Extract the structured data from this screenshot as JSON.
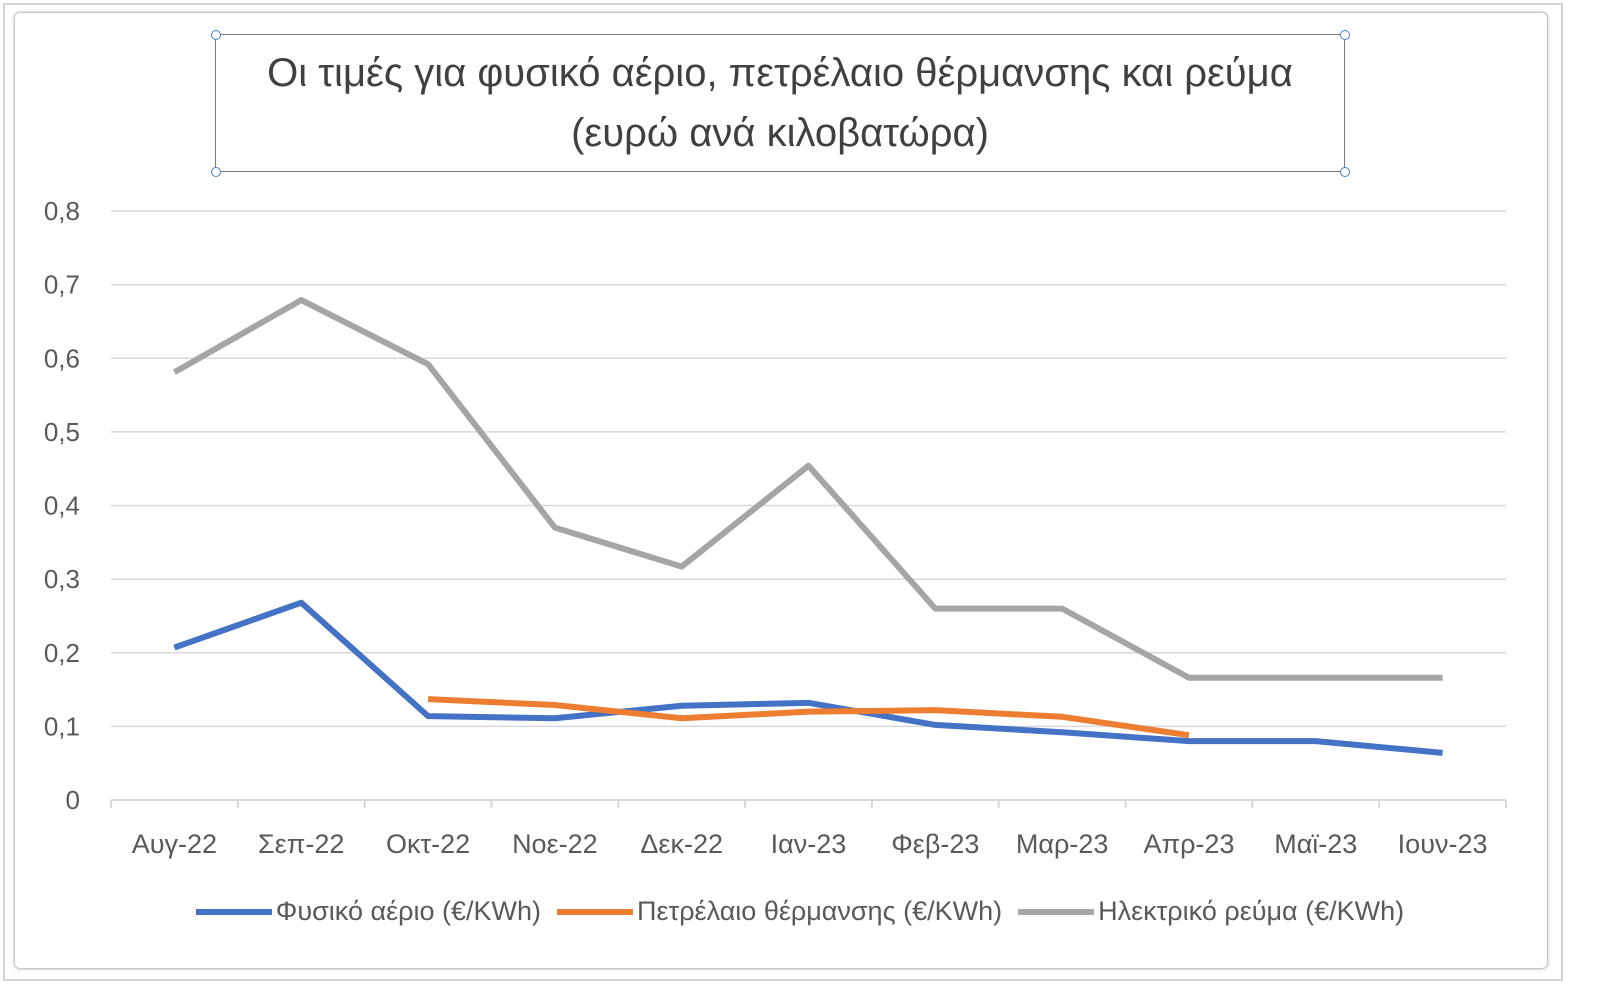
{
  "chart_data": {
    "type": "line",
    "title": "Οι τιμές για φυσικό αέριο, πετρέλαιο θέρμανσης και ρεύμα (ευρώ ανά κιλοβατώρα)",
    "categories": [
      "Αυγ-22",
      "Σεπ-22",
      "Οκτ-22",
      "Νοε-22",
      "Δεκ-22",
      "Ιαν-23",
      "Φεβ-23",
      "Μαρ-23",
      "Απρ-23",
      "Μαϊ-23",
      "Ιουν-23"
    ],
    "ylim": [
      0,
      0.8
    ],
    "yticks": [
      "0",
      "0,1",
      "0,2",
      "0,3",
      "0,4",
      "0,5",
      "0,6",
      "0,7",
      "0,8"
    ],
    "grid": true,
    "legend": "bottom",
    "series": [
      {
        "name": "Φυσικό αέριο (€/KWh)",
        "color": "#4472c4",
        "values": [
          0.207,
          0.268,
          0.114,
          0.111,
          0.128,
          0.132,
          0.102,
          0.092,
          0.08,
          0.08,
          0.064
        ]
      },
      {
        "name": "Πετρέλαιο θέρμανσης (€/KWh)",
        "color": "#ed7d31",
        "values": [
          null,
          null,
          0.137,
          0.129,
          0.111,
          0.12,
          0.122,
          0.113,
          0.088,
          null,
          null
        ]
      },
      {
        "name": "Ηλεκτρικό ρεύμα (€/KWh)",
        "color": "#a5a5a5",
        "values": [
          0.581,
          0.679,
          0.592,
          0.37,
          0.317,
          0.454,
          0.26,
          0.26,
          0.166,
          0.166,
          0.166
        ]
      }
    ]
  }
}
